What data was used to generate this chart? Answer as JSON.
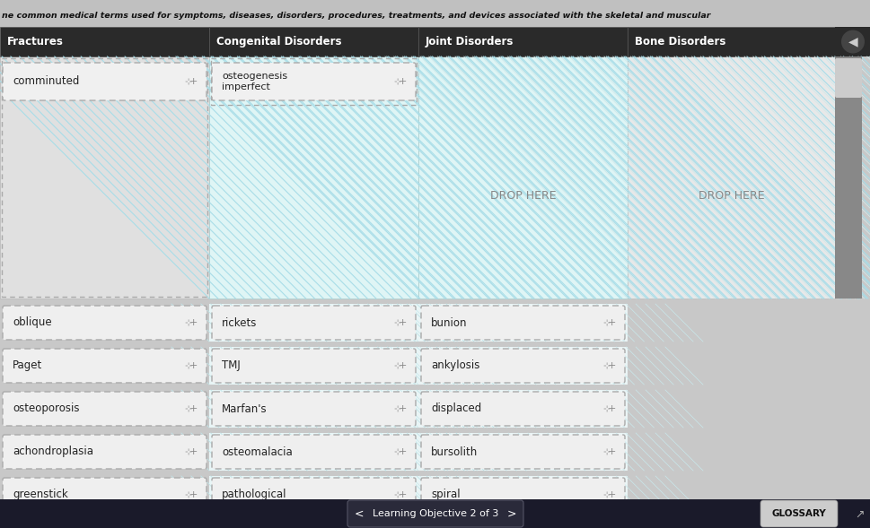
{
  "top_text": "ne common medical terms used for symptoms, diseases, disorders, procedures, treatments, and devices associated with the skeletal and muscular",
  "col_labels": [
    "Fractures",
    "Congenital Disorders",
    "Joint Disorders",
    "Bone Disorders"
  ],
  "bg_color": "#c8c8c8",
  "top_banner_color": "#d0d0d0",
  "top_text_color": "#111111",
  "header_color": "#2a2a2a",
  "header_text_color": "#ffffff",
  "drop_zone_plain_bg": "#e8e8e8",
  "drop_zone_stripe_bg": "#dff5f5",
  "drop_zone_stripe_line": "#a8dde8",
  "drop_here_text_color": "#888888",
  "card_bg": "#f2f2f2",
  "card_border": "#bbbbbb",
  "card_text_color": "#222222",
  "card_dashed_bg": "#f8f8f8",
  "placed_card_bg": "#f0f0f0",
  "scrollbar_bg": "#999999",
  "scrollbar_thumb": "#dddddd",
  "nav_bar_color": "#1a1a2a",
  "nav_text_color": "#ffffff",
  "glossary_bg": "#dddddd",
  "glossary_text": "#111111",
  "word_rows": [
    [
      "oblique",
      "rickets",
      "bunion",
      ""
    ],
    [
      "Paget",
      "TMJ",
      "ankylosis",
      ""
    ],
    [
      "osteoporosis",
      "Marfan's",
      "displaced",
      ""
    ],
    [
      "achondroplasia",
      "osteomalacia",
      "bursolith",
      ""
    ],
    [
      "greenstick",
      "pathological",
      "spiral",
      ""
    ]
  ],
  "placed_cards": [
    {
      "text": "comminuted",
      "col": 0
    },
    {
      "text": "osteogenesis\nimperfect",
      "col": 1
    }
  ]
}
